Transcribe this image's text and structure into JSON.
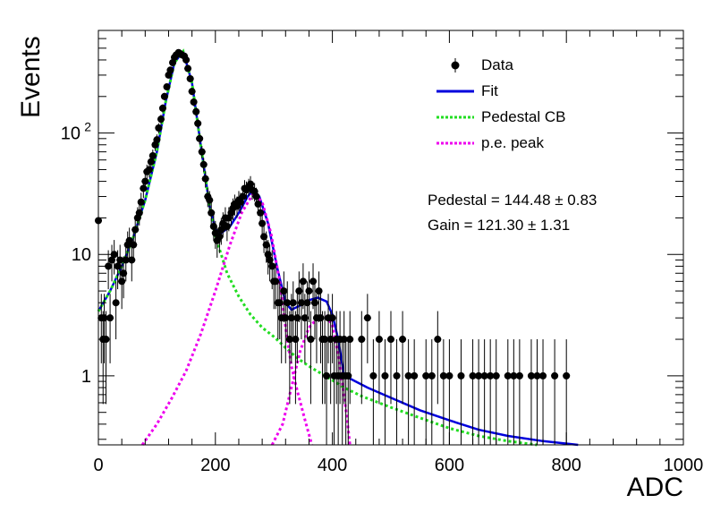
{
  "chart_data": {
    "type": "scatter",
    "xlabel": "ADC",
    "ylabel": "Events",
    "xlim": [
      0,
      1000
    ],
    "ylim": [
      0.27,
      700
    ],
    "yscale": "log",
    "x_ticks": [
      "0",
      "200",
      "400",
      "600",
      "800",
      "1000"
    ],
    "y_ticks": [
      {
        "value": 1,
        "label": "1"
      },
      {
        "value": 10,
        "label": "10"
      },
      {
        "value": 100,
        "label": "10",
        "sup": "2"
      }
    ],
    "legend": {
      "placement": "top-right",
      "entries": [
        {
          "label": "Data",
          "style": "marker",
          "color": "#000000"
        },
        {
          "label": "Fit",
          "style": "solid",
          "color": "#0000dd"
        },
        {
          "label": "Pedestal CB",
          "style": "dotted",
          "color": "#22dd22"
        },
        {
          "label": "p.e. peak",
          "style": "dotted",
          "color": "#ee00ee"
        }
      ]
    },
    "annotations": {
      "pedestal": "Pedestal = 144.48 ± 0.83",
      "gain": "Gain = 121.30 ± 1.31"
    },
    "series": [
      {
        "name": "Data",
        "points": [
          [
            0,
            19
          ],
          [
            5,
            3
          ],
          [
            8,
            2
          ],
          [
            10,
            3
          ],
          [
            13,
            2
          ],
          [
            17,
            8
          ],
          [
            20,
            3
          ],
          [
            23,
            9
          ],
          [
            27,
            10
          ],
          [
            30,
            4
          ],
          [
            33,
            8
          ],
          [
            37,
            9
          ],
          [
            40,
            6
          ],
          [
            43,
            7
          ],
          [
            47,
            9
          ],
          [
            50,
            12
          ],
          [
            53,
            13
          ],
          [
            57,
            9
          ],
          [
            60,
            12
          ],
          [
            63,
            16
          ],
          [
            67,
            20
          ],
          [
            70,
            22
          ],
          [
            73,
            27
          ],
          [
            77,
            35
          ],
          [
            80,
            40
          ],
          [
            83,
            48
          ],
          [
            87,
            50
          ],
          [
            90,
            58
          ],
          [
            93,
            65
          ],
          [
            97,
            80
          ],
          [
            100,
            88
          ],
          [
            103,
            110
          ],
          [
            107,
            130
          ],
          [
            110,
            160
          ],
          [
            113,
            200
          ],
          [
            117,
            240
          ],
          [
            120,
            300
          ],
          [
            123,
            330
          ],
          [
            127,
            380
          ],
          [
            130,
            420
          ],
          [
            133,
            440
          ],
          [
            137,
            460
          ],
          [
            140,
            450
          ],
          [
            143,
            440
          ],
          [
            147,
            430
          ],
          [
            150,
            400
          ],
          [
            153,
            340
          ],
          [
            157,
            280
          ],
          [
            160,
            220
          ],
          [
            163,
            180
          ],
          [
            167,
            150
          ],
          [
            170,
            120
          ],
          [
            173,
            90
          ],
          [
            177,
            70
          ],
          [
            180,
            55
          ],
          [
            183,
            42
          ],
          [
            187,
            30
          ],
          [
            190,
            28
          ],
          [
            193,
            22
          ],
          [
            197,
            17
          ],
          [
            200,
            15
          ],
          [
            203,
            13
          ],
          [
            207,
            14
          ],
          [
            210,
            16
          ],
          [
            213,
            18
          ],
          [
            217,
            20
          ],
          [
            220,
            17
          ],
          [
            223,
            20
          ],
          [
            227,
            22
          ],
          [
            230,
            24
          ],
          [
            233,
            26
          ],
          [
            237,
            25
          ],
          [
            240,
            28
          ],
          [
            243,
            27
          ],
          [
            247,
            30
          ],
          [
            250,
            35
          ],
          [
            253,
            34
          ],
          [
            257,
            36
          ],
          [
            260,
            38
          ],
          [
            263,
            34
          ],
          [
            267,
            33
          ],
          [
            270,
            30
          ],
          [
            273,
            26
          ],
          [
            277,
            22
          ],
          [
            280,
            18
          ],
          [
            283,
            14
          ],
          [
            287,
            12
          ],
          [
            290,
            10
          ],
          [
            293,
            9
          ],
          [
            297,
            8
          ],
          [
            300,
            6
          ],
          [
            303,
            6
          ],
          [
            307,
            4
          ],
          [
            310,
            4
          ],
          [
            313,
            3
          ],
          [
            317,
            5
          ],
          [
            320,
            3
          ],
          [
            323,
            4
          ],
          [
            327,
            2
          ],
          [
            330,
            3
          ],
          [
            333,
            4
          ],
          [
            337,
            2
          ],
          [
            340,
            3
          ],
          [
            343,
            5
          ],
          [
            347,
            4
          ],
          [
            350,
            6
          ],
          [
            353,
            3
          ],
          [
            357,
            4
          ],
          [
            360,
            5
          ],
          [
            363,
            2
          ],
          [
            367,
            6
          ],
          [
            370,
            4
          ],
          [
            373,
            3
          ],
          [
            377,
            5
          ],
          [
            380,
            3
          ],
          [
            383,
            2
          ],
          [
            387,
            2
          ],
          [
            390,
            1
          ],
          [
            393,
            3
          ],
          [
            397,
            2
          ],
          [
            400,
            3
          ],
          [
            403,
            1
          ],
          [
            407,
            2
          ],
          [
            410,
            1
          ],
          [
            413,
            2
          ],
          [
            417,
            1
          ],
          [
            420,
            2
          ],
          [
            423,
            1
          ],
          [
            427,
            1
          ],
          [
            430,
            2
          ],
          [
            450,
            2
          ],
          [
            460,
            3
          ],
          [
            470,
            1
          ],
          [
            480,
            2
          ],
          [
            490,
            1
          ],
          [
            500,
            2
          ],
          [
            510,
            1
          ],
          [
            520,
            2
          ],
          [
            530,
            1
          ],
          [
            540,
            1
          ],
          [
            560,
            1
          ],
          [
            570,
            1
          ],
          [
            580,
            2
          ],
          [
            590,
            1
          ],
          [
            600,
            1
          ],
          [
            620,
            1
          ],
          [
            640,
            1
          ],
          [
            650,
            1
          ],
          [
            660,
            1
          ],
          [
            670,
            1
          ],
          [
            680,
            1
          ],
          [
            700,
            1
          ],
          [
            710,
            1
          ],
          [
            720,
            1
          ],
          [
            740,
            1
          ],
          [
            750,
            1
          ],
          [
            760,
            1
          ],
          [
            780,
            1
          ],
          [
            800,
            1
          ]
        ]
      },
      {
        "name": "Fit",
        "points": [
          [
            0,
            3.4
          ],
          [
            20,
            5
          ],
          [
            40,
            8
          ],
          [
            60,
            14
          ],
          [
            80,
            28
          ],
          [
            100,
            70
          ],
          [
            115,
            180
          ],
          [
            130,
            380
          ],
          [
            145,
            470
          ],
          [
            160,
            260
          ],
          [
            175,
            80
          ],
          [
            190,
            25
          ],
          [
            200,
            16
          ],
          [
            210,
            15
          ],
          [
            225,
            17
          ],
          [
            240,
            22
          ],
          [
            255,
            30
          ],
          [
            265,
            34
          ],
          [
            275,
            30
          ],
          [
            290,
            18
          ],
          [
            305,
            8
          ],
          [
            320,
            4
          ],
          [
            330,
            3.5
          ],
          [
            345,
            3.8
          ],
          [
            360,
            4.2
          ],
          [
            375,
            4.4
          ],
          [
            390,
            4.1
          ],
          [
            400,
            3.2
          ],
          [
            410,
            2
          ],
          [
            420,
            1
          ],
          [
            430,
            0.95
          ],
          [
            460,
            0.8
          ],
          [
            500,
            0.66
          ],
          [
            550,
            0.52
          ],
          [
            600,
            0.43
          ],
          [
            650,
            0.36
          ],
          [
            700,
            0.32
          ],
          [
            760,
            0.29
          ],
          [
            820,
            0.27
          ]
        ]
      },
      {
        "name": "Pedestal CB",
        "points": [
          [
            0,
            3.4
          ],
          [
            20,
            5
          ],
          [
            40,
            8
          ],
          [
            60,
            14
          ],
          [
            80,
            28
          ],
          [
            100,
            70
          ],
          [
            115,
            180
          ],
          [
            130,
            380
          ],
          [
            145,
            470
          ],
          [
            160,
            260
          ],
          [
            175,
            80
          ],
          [
            190,
            25
          ],
          [
            200,
            14
          ],
          [
            210,
            10
          ],
          [
            220,
            7
          ],
          [
            240,
            4.5
          ],
          [
            260,
            3.2
          ],
          [
            280,
            2.5
          ],
          [
            300,
            2.1
          ],
          [
            320,
            1.7
          ],
          [
            340,
            1.4
          ],
          [
            360,
            1.2
          ],
          [
            380,
            1.05
          ],
          [
            400,
            0.92
          ],
          [
            420,
            0.8
          ],
          [
            450,
            0.68
          ],
          [
            500,
            0.55
          ],
          [
            550,
            0.45
          ],
          [
            600,
            0.37
          ],
          [
            650,
            0.32
          ],
          [
            700,
            0.29
          ],
          [
            750,
            0.27
          ]
        ]
      },
      {
        "name": "p.e. peak",
        "points": [
          [
            75,
            0.27
          ],
          [
            100,
            0.4
          ],
          [
            125,
            0.65
          ],
          [
            150,
            1.1
          ],
          [
            175,
            2.2
          ],
          [
            200,
            5
          ],
          [
            225,
            12
          ],
          [
            245,
            22
          ],
          [
            265,
            32
          ],
          [
            280,
            27
          ],
          [
            295,
            15
          ],
          [
            310,
            6
          ],
          [
            320,
            2.5
          ],
          [
            330,
            1.2
          ],
          [
            340,
            0.75
          ],
          [
            355,
            0.4
          ],
          [
            365,
            0.27
          ]
        ]
      },
      {
        "name": "p.e. peak 2",
        "points": [
          [
            297,
            0.27
          ],
          [
            315,
            0.4
          ],
          [
            330,
            0.8
          ],
          [
            345,
            1.6
          ],
          [
            360,
            2.5
          ],
          [
            375,
            3
          ],
          [
            390,
            3.1
          ],
          [
            400,
            2.6
          ],
          [
            410,
            1.5
          ],
          [
            418,
            0.8
          ],
          [
            425,
            0.45
          ],
          [
            430,
            0.27
          ]
        ]
      }
    ]
  }
}
